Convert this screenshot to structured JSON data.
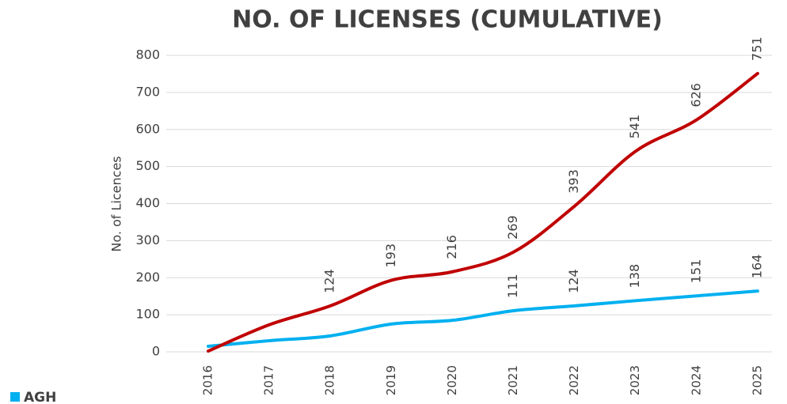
{
  "chart_data": {
    "type": "line",
    "title": "NO. OF LICENSES (CUMULATIVE)",
    "y_label": "No. of Licences",
    "categories": [
      "2016",
      "2017",
      "2018",
      "2019",
      "2020",
      "2021",
      "2022",
      "2023",
      "2024",
      "2025"
    ],
    "series": [
      {
        "name": "AGH",
        "color": "#00b0f0",
        "values": [
          15,
          30,
          43,
          75,
          85,
          111,
          124,
          138,
          151,
          164
        ],
        "value_labels": [
          null,
          null,
          null,
          null,
          null,
          "111",
          "124",
          "138",
          "151",
          "164"
        ]
      },
      {
        "color": "#c00000",
        "values": [
          2,
          73,
          124,
          193,
          216,
          269,
          393,
          541,
          626,
          751
        ],
        "value_labels": [
          null,
          null,
          "124",
          "193",
          "216",
          "269",
          "393",
          "541",
          "626",
          "751"
        ]
      }
    ],
    "ylim": [
      0,
      800
    ],
    "yticks": [
      0,
      100,
      200,
      300,
      400,
      500,
      600,
      700,
      800
    ],
    "grid": true,
    "legend": "bottom-left"
  }
}
